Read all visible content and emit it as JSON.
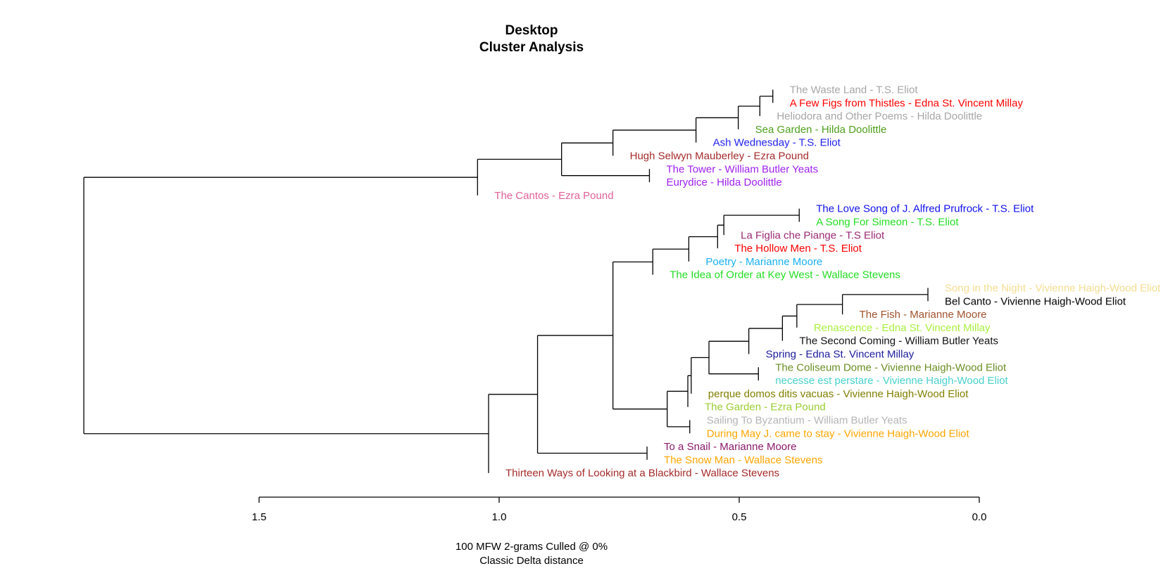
{
  "chart_data": {
    "type": "dendrogram",
    "title": [
      "Desktop",
      "Cluster Analysis"
    ],
    "subtitle": [
      "100 MFW 2-grams Culled @ 0%",
      "Classic Delta distance"
    ],
    "x_ticks": [
      "1.5",
      "1.0",
      "0.5",
      "0.0"
    ],
    "x_tick_values": [
      1.5,
      1.0,
      0.5,
      0.0
    ],
    "xlim": [
      1.5,
      0.0
    ],
    "leaves": [
      {
        "label": "The Waste Land - T.S. Eliot",
        "color": "#a6a6a6"
      },
      {
        "label": "A Few Figs from Thistles - Edna St. Vincent Millay",
        "color": "#ff0000"
      },
      {
        "label": "Heliodora and Other Poems - Hilda Doolittle",
        "color": "#a6a6a6"
      },
      {
        "label": "Sea Garden - Hilda Doolittle",
        "color": "#4fa01c"
      },
      {
        "label": "Ash Wednesday - T.S. Eliot",
        "color": "#2222ee"
      },
      {
        "label": "Hugh Selwyn Mauberley - Ezra Pound",
        "color": "#a52a2a"
      },
      {
        "label": "The Tower - William Butler Yeats",
        "color": "#a020f0"
      },
      {
        "label": "Eurydice - Hilda Doolittle",
        "color": "#a020f0"
      },
      {
        "label": "The Cantos - Ezra Pound",
        "color": "#e0609a"
      },
      {
        "label": "The Love Song of J. Alfred Prufrock - T.S. Eliot",
        "color": "#1010ee"
      },
      {
        "label": "A Song For Simeon - T.S. Eliot",
        "color": "#22dd22"
      },
      {
        "label": "La Figlia che Piange - T.S Eliot",
        "color": "#9a2a72"
      },
      {
        "label": "The Hollow Men - T.S. Eliot",
        "color": "#ff0000"
      },
      {
        "label": "Poetry - Marianne Moore",
        "color": "#1ab0f0"
      },
      {
        "label": "The Idea of Order at Key West - Wallace Stevens",
        "color": "#22dd22"
      },
      {
        "label": "Song in the Night - Vivienne Haigh-Wood Eliot",
        "color": "#f5dd90"
      },
      {
        "label": "Bel Canto - Vivienne Haigh-Wood Eliot",
        "color": "#000000"
      },
      {
        "label": "The Fish - Marianne Moore",
        "color": "#a0522d"
      },
      {
        "label": "Renascence - Edna St. Vincent Millay",
        "color": "#aaf03c"
      },
      {
        "label": "The Second Coming - William Butler Yeats",
        "color": "#111111"
      },
      {
        "label": "Spring - Edna St. Vincent Millay",
        "color": "#1c1c9c"
      },
      {
        "label": "The Coliseum Dome - Vivienne Haigh-Wood Eliot",
        "color": "#6b8e23"
      },
      {
        "label": "necesse est perstare - Vivienne Haigh-Wood Eliot",
        "color": "#48d1cc"
      },
      {
        "label": "perque domos ditis vacuas - Vivienne Haigh-Wood Eliot",
        "color": "#808000"
      },
      {
        "label": "The Garden - Ezra Pound",
        "color": "#9acd32"
      },
      {
        "label": "Sailing To Byzantium - William Butler Yeats",
        "color": "#b5b5b5"
      },
      {
        "label": "During May  J. came to stay - Vivienne Haigh-Wood Eliot",
        "color": "#ffa500"
      },
      {
        "label": "To a Snail - Marianne Moore",
        "color": "#8b1a6b"
      },
      {
        "label": "The Snow Man - Wallace Stevens",
        "color": "#ffa500"
      },
      {
        "label": "Thirteen Ways of Looking at a Blackbird - Wallace Stevens",
        "color": "#a52a2a"
      }
    ],
    "merges": [
      {
        "children": [
          "L0",
          "L1"
        ],
        "height": 0.43
      },
      {
        "children": [
          "M0",
          "L2"
        ],
        "height": 0.457
      },
      {
        "children": [
          "M1",
          "L3"
        ],
        "height": 0.502
      },
      {
        "children": [
          "M2",
          "L4"
        ],
        "height": 0.59
      },
      {
        "children": [
          "M3",
          "L5"
        ],
        "height": 0.763
      },
      {
        "children": [
          "L6",
          "L7"
        ],
        "height": 0.687
      },
      {
        "children": [
          "M4",
          "M5"
        ],
        "height": 0.87
      },
      {
        "children": [
          "M6",
          "L8"
        ],
        "height": 1.045
      },
      {
        "children": [
          "L9",
          "L10"
        ],
        "height": 0.375
      },
      {
        "children": [
          "M8",
          "L11"
        ],
        "height": 0.532
      },
      {
        "children": [
          "M9",
          "L12"
        ],
        "height": 0.545
      },
      {
        "children": [
          "M10",
          "L13"
        ],
        "height": 0.605
      },
      {
        "children": [
          "M11",
          "L14"
        ],
        "height": 0.68
      },
      {
        "children": [
          "L15",
          "L16"
        ],
        "height": 0.107
      },
      {
        "children": [
          "M13",
          "L17"
        ],
        "height": 0.285
      },
      {
        "children": [
          "M14",
          "L18"
        ],
        "height": 0.38
      },
      {
        "children": [
          "M15",
          "L19"
        ],
        "height": 0.41
      },
      {
        "children": [
          "M16",
          "L20"
        ],
        "height": 0.48
      },
      {
        "children": [
          "L21",
          "L22"
        ],
        "height": 0.46
      },
      {
        "children": [
          "M17",
          "M18"
        ],
        "height": 0.563
      },
      {
        "children": [
          "M19",
          "L23"
        ],
        "height": 0.6
      },
      {
        "children": [
          "M20",
          "L24"
        ],
        "height": 0.607
      },
      {
        "children": [
          "L25",
          "L26"
        ],
        "height": 0.603
      },
      {
        "children": [
          "M21",
          "M22"
        ],
        "height": 0.65
      },
      {
        "children": [
          "M12",
          "M23"
        ],
        "height": 0.763
      },
      {
        "children": [
          "L27",
          "L28"
        ],
        "height": 0.692
      },
      {
        "children": [
          "M24",
          "M25"
        ],
        "height": 0.92
      },
      {
        "children": [
          "M26",
          "L29"
        ],
        "height": 1.022
      },
      {
        "children": [
          "M7",
          "M27"
        ],
        "height": 1.865
      }
    ]
  }
}
